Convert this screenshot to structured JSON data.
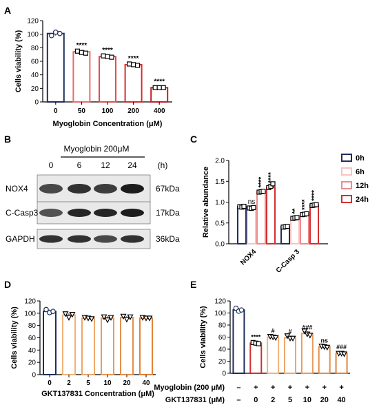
{
  "panels": {
    "A": "A",
    "B": "B",
    "C": "C",
    "D": "D",
    "E": "E"
  },
  "chart_data": [
    {
      "id": "A",
      "type": "bar",
      "xlabel": "Myoglobin Concentration (μM)",
      "ylabel": "Cells viability (%)",
      "ylim": [
        0,
        120
      ],
      "yticks": [
        "0",
        "20",
        "40",
        "60",
        "80",
        "100",
        "120"
      ],
      "categories": [
        "0",
        "50",
        "100",
        "200",
        "400"
      ],
      "values": [
        101,
        74,
        67,
        55,
        21
      ],
      "error": [
        3,
        2,
        1.5,
        1.5,
        1.5
      ],
      "points": [
        [
          98,
          103,
          101
        ],
        [
          75,
          73,
          72
        ],
        [
          68,
          67,
          66
        ],
        [
          56,
          55,
          54
        ],
        [
          21,
          21,
          21
        ]
      ],
      "annotations": [
        "",
        "****",
        "****",
        "****",
        "****"
      ],
      "colors": [
        "#1f2d5c",
        "#e86b6b",
        "#e14f4f",
        "#d32f2f",
        "#c0201f"
      ]
    },
    {
      "id": "C",
      "type": "bar",
      "ylabel": "Relative abundance",
      "ylim": [
        0,
        2.0
      ],
      "yticks": [
        "0.0",
        "0.5",
        "1.0",
        "1.5",
        "2.0"
      ],
      "categories": [
        "NOX4",
        "C-Casp 3"
      ],
      "series": [
        {
          "name": "0h",
          "values": [
            0.89,
            0.41
          ],
          "points": [
            [
              0.89,
              0.88,
              0.9
            ],
            [
              0.4,
              0.41,
              0.42
            ]
          ],
          "color": "#1f2d5c",
          "fill": "#ffffff"
        },
        {
          "name": "6h",
          "values": [
            0.86,
            0.62
          ],
          "points": [
            [
              0.86,
              0.85,
              0.87
            ],
            [
              0.61,
              0.62,
              0.63
            ]
          ],
          "color": "#f6c3c3",
          "fill": "#ffffff"
        },
        {
          "name": "12h",
          "values": [
            1.25,
            0.71
          ],
          "points": [
            [
              1.24,
              1.25,
              1.26
            ],
            [
              0.7,
              0.71,
              0.72
            ]
          ],
          "color": "#ee8a8a",
          "fill": "#ffffff"
        },
        {
          "name": "24h",
          "values": [
            1.36,
            0.93
          ],
          "points": [
            [
              1.35,
              1.38,
              1.44
            ],
            [
              0.92,
              0.93,
              0.94
            ]
          ],
          "color": "#d32f2f",
          "fill": "#ffffff"
        }
      ],
      "annotations": [
        [
          "",
          "ns",
          "****",
          "****"
        ],
        [
          "",
          "**",
          "****",
          "****"
        ]
      ]
    },
    {
      "id": "D",
      "type": "bar",
      "xlabel": "GKT137831 Concentration (μM)",
      "ylabel": "Cells viability (%)",
      "ylim": [
        0,
        120
      ],
      "yticks": [
        "0",
        "20",
        "40",
        "60",
        "80",
        "100",
        "120"
      ],
      "categories": [
        "0",
        "2",
        "5",
        "10",
        "20",
        "40"
      ],
      "values": [
        103,
        97,
        92,
        92,
        93,
        92
      ],
      "error": [
        3,
        3,
        1.5,
        3,
        2.5,
        1
      ],
      "points": [
        [
          106,
          101,
          103
        ],
        [
          99,
          93,
          98
        ],
        [
          93,
          92,
          91
        ],
        [
          94,
          89,
          93
        ],
        [
          95,
          90,
          94
        ],
        [
          93,
          92,
          92
        ]
      ],
      "colors": [
        "#1f2d5c",
        "#f2b27a",
        "#eea66a",
        "#e99a5a",
        "#e48e4a",
        "#df833c"
      ]
    },
    {
      "id": "E",
      "type": "bar",
      "ylabel": "Cells viability (%)",
      "ylim": [
        0,
        120
      ],
      "yticks": [
        "0",
        "20",
        "40",
        "60",
        "80",
        "100",
        "120"
      ],
      "categories": [
        "–",
        "0",
        "2",
        "5",
        "10",
        "20",
        "40"
      ],
      "myoglobin_label": "Myoglobin (200 μM)",
      "gkt_label": "GKT137831 (μM)",
      "myoglobin_row": [
        "–",
        "+",
        "+",
        "+",
        "+",
        "+",
        "+"
      ],
      "gkt_row": [
        "–",
        "0",
        "2",
        "5",
        "10",
        "20",
        "40"
      ],
      "values": [
        105,
        50,
        60,
        59,
        66,
        44,
        33
      ],
      "error": [
        3,
        2,
        2,
        3,
        4,
        2,
        1
      ],
      "points": [
        [
          108,
          103,
          105
        ],
        [
          51,
          50,
          49
        ],
        [
          61,
          60,
          59
        ],
        [
          62,
          58,
          58
        ],
        [
          70,
          65,
          63
        ],
        [
          45,
          44,
          43
        ],
        [
          33,
          33,
          32
        ]
      ],
      "annotations": [
        "",
        "****",
        "#",
        "#",
        "###",
        "ns",
        "###"
      ],
      "colors": [
        "#1f2d5c",
        "#d32f2f",
        "#f2b27a",
        "#eea66a",
        "#e99a5a",
        "#e48e4a",
        "#df833c"
      ]
    }
  ],
  "blot": {
    "header": "Myoglobin  200μM",
    "lanes": [
      "0",
      "6",
      "12",
      "24"
    ],
    "unit": "(h)",
    "rows": [
      {
        "name": "NOX4",
        "kda": "67kDa"
      },
      {
        "name": "C-Casp3",
        "kda": "17kDa"
      },
      {
        "name": "GAPDH",
        "kda": "36kDa"
      }
    ]
  }
}
